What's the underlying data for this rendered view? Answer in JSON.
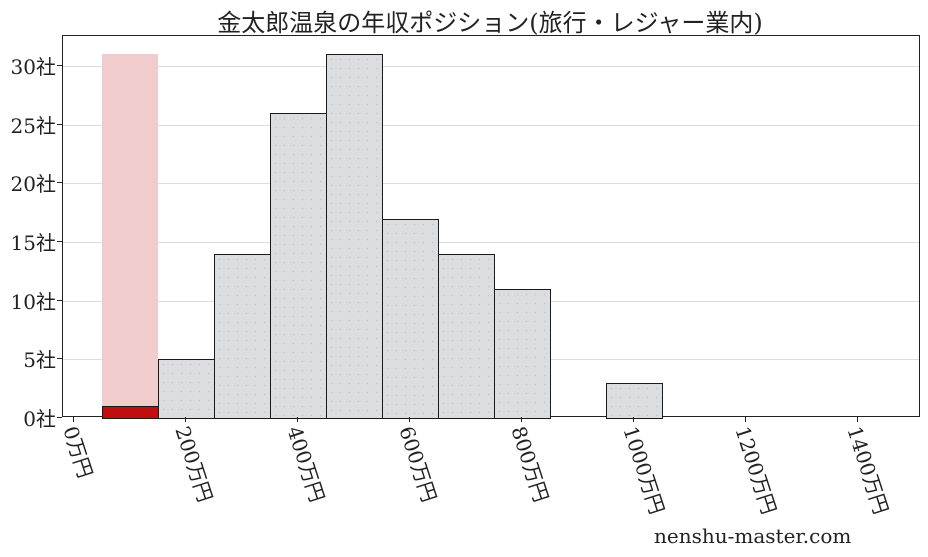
{
  "title": "金太郎温泉の年収ポジション(旅行・レジャー業内)",
  "watermark": "nenshu-master.com",
  "colors": {
    "bar_fill": "#dcdde0",
    "bar_edge": "#1a1a1a",
    "highlight": "#c00d0d",
    "highlight_background": "#f1cccc",
    "grid": "#dcdcdc"
  },
  "y_ticks": [
    "0社",
    "5社",
    "10社",
    "15社",
    "20社",
    "25社",
    "30社"
  ],
  "x_ticks": [
    "0万円",
    "200万円",
    "400万円",
    "600万円",
    "800万円",
    "1000万円",
    "1200万円",
    "1400万円"
  ],
  "chart_data": {
    "type": "bar",
    "title": "金太郎温泉の年収ポジション(旅行・レジャー業内)",
    "xlabel": "",
    "ylabel": "",
    "x_unit": "万円",
    "y_unit": "社",
    "bin_width": 100,
    "categories": [
      "100万円",
      "200万円",
      "300万円",
      "400万円",
      "500万円",
      "600万円",
      "700万円",
      "800万円",
      "900万円",
      "1000万円"
    ],
    "bin_centers": [
      100,
      200,
      300,
      400,
      500,
      600,
      700,
      800,
      900,
      1000
    ],
    "values": [
      1,
      5,
      14,
      26,
      31,
      17,
      14,
      11,
      0,
      3
    ],
    "highlight": {
      "bin_center": 100,
      "value": 1,
      "background_height": 31,
      "color": "#c00d0d"
    },
    "xlim": [
      -20,
      1520
    ],
    "ylim": [
      0,
      32.5
    ],
    "x_tick_values": [
      0,
      200,
      400,
      600,
      800,
      1000,
      1200,
      1400
    ],
    "y_tick_values": [
      0,
      5,
      10,
      15,
      20,
      25,
      30
    ],
    "grid": "horizontal",
    "legend": null
  }
}
